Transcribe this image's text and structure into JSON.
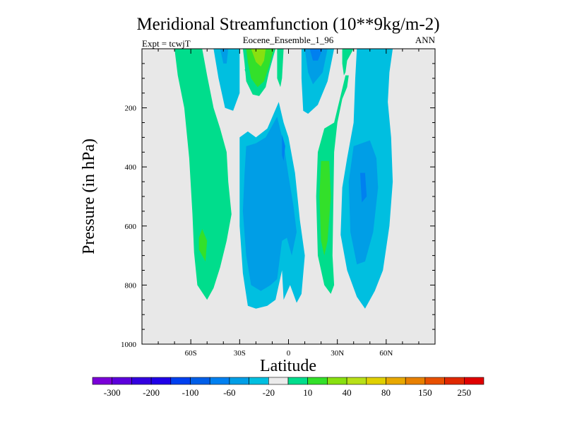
{
  "chart_data": {
    "type": "contour",
    "title": "Meridional Streamfunction (10**9kg/m-2)",
    "subtitle": "Eocene_Ensemble_1_96",
    "left_label": "Expt = tcwjT",
    "right_label": "ANN",
    "xlabel": "Latitude",
    "ylabel": "Pressure (in hPa)",
    "xlim": [
      -90,
      90
    ],
    "ylim": [
      0,
      1000
    ],
    "y_inverted": true,
    "x_ticks": [
      {
        "value": -60,
        "label": "60S"
      },
      {
        "value": -30,
        "label": "30S"
      },
      {
        "value": 0,
        "label": "0"
      },
      {
        "value": 30,
        "label": "30N"
      },
      {
        "value": 60,
        "label": "60N"
      }
    ],
    "y_ticks": [
      {
        "value": 200,
        "label": "200"
      },
      {
        "value": 400,
        "label": "400"
      },
      {
        "value": 600,
        "label": "600"
      },
      {
        "value": 800,
        "label": "800"
      },
      {
        "value": 1000,
        "label": "1000"
      }
    ],
    "background_color": "#e8e8e8",
    "regions": [
      {
        "level": 10,
        "color": "#00dd8c",
        "points": [
          [
            -70,
            0
          ],
          [
            -53,
            0
          ],
          [
            -50,
            90
          ],
          [
            -46,
            200
          ],
          [
            -42,
            270
          ],
          [
            -38,
            350
          ],
          [
            -37,
            450
          ],
          [
            -35,
            560
          ],
          [
            -38,
            650
          ],
          [
            -42,
            740
          ],
          [
            -46,
            810
          ],
          [
            -50,
            850
          ],
          [
            -56,
            800
          ],
          [
            -58,
            690
          ],
          [
            -59,
            560
          ],
          [
            -61,
            370
          ],
          [
            -64,
            200
          ],
          [
            -68,
            90
          ]
        ]
      },
      {
        "level": 40,
        "color": "#33e02a",
        "points": [
          [
            -53,
            610
          ],
          [
            -50,
            650
          ],
          [
            -51,
            720
          ],
          [
            -55,
            680
          ],
          [
            -55,
            640
          ]
        ]
      },
      {
        "level": -20,
        "color": "#00bfe0",
        "points": [
          [
            -46,
            0
          ],
          [
            -30,
            0
          ],
          [
            -30,
            150
          ],
          [
            -34,
            210
          ],
          [
            -39,
            200
          ],
          [
            -43,
            100
          ]
        ]
      },
      {
        "level": -40,
        "color": "#009ee6",
        "points": [
          [
            -42,
            0
          ],
          [
            -37,
            0
          ],
          [
            -38,
            50
          ],
          [
            -40,
            50
          ]
        ]
      },
      {
        "level": 10,
        "color": "#00dd8c",
        "points": [
          [
            -28,
            0
          ],
          [
            -8,
            0
          ],
          [
            -12,
            80
          ],
          [
            -14,
            130
          ],
          [
            -18,
            160
          ],
          [
            -22,
            155
          ],
          [
            -26,
            110
          ],
          [
            -27,
            50
          ]
        ]
      },
      {
        "level": 40,
        "color": "#33e02a",
        "points": [
          [
            -26,
            0
          ],
          [
            -9,
            0
          ],
          [
            -12,
            60
          ],
          [
            -15,
            110
          ],
          [
            -19,
            130
          ],
          [
            -23,
            100
          ],
          [
            -25,
            45
          ]
        ]
      },
      {
        "level": 80,
        "color": "#88e010",
        "points": [
          [
            -23,
            0
          ],
          [
            -14,
            0
          ],
          [
            -15,
            40
          ],
          [
            -17,
            60
          ],
          [
            -20,
            45
          ]
        ]
      },
      {
        "level": 10,
        "color": "#00dd8c",
        "points": [
          [
            -7,
            0
          ],
          [
            -3,
            0
          ],
          [
            -4,
            100
          ],
          [
            -5,
            130
          ],
          [
            -7,
            100
          ]
        ]
      },
      {
        "level": 10,
        "color": "#00dd8c",
        "points": [
          [
            -27,
            70
          ],
          [
            -24,
            70
          ],
          [
            -25,
            100
          ]
        ]
      },
      {
        "level": -20,
        "color": "#00bfe0",
        "points": [
          [
            8,
            0
          ],
          [
            28,
            0
          ],
          [
            24,
            110
          ],
          [
            18,
            190
          ],
          [
            12,
            220
          ],
          [
            9,
            210
          ],
          [
            8,
            100
          ]
        ]
      },
      {
        "level": -40,
        "color": "#009ee6",
        "points": [
          [
            10,
            0
          ],
          [
            24,
            0
          ],
          [
            21,
            80
          ],
          [
            15,
            120
          ],
          [
            12,
            80
          ]
        ]
      },
      {
        "level": -60,
        "color": "#0080f0",
        "points": [
          [
            13,
            0
          ],
          [
            21,
            0
          ],
          [
            18,
            40
          ],
          [
            15,
            40
          ]
        ]
      },
      {
        "level": 10,
        "color": "#00dd8c",
        "points": [
          [
            33,
            0
          ],
          [
            40,
            0
          ],
          [
            36,
            40
          ],
          [
            35,
            80
          ],
          [
            34,
            90
          ],
          [
            33,
            50
          ]
        ]
      },
      {
        "level": 10,
        "color": "#00dd8c",
        "points": [
          [
            35,
            90
          ],
          [
            37,
            90
          ],
          [
            36,
            130
          ],
          [
            33,
            170
          ],
          [
            30,
            250
          ],
          [
            28,
            350
          ],
          [
            27,
            700
          ],
          [
            28,
            800
          ],
          [
            26,
            830
          ],
          [
            22,
            800
          ],
          [
            18,
            700
          ],
          [
            17,
            500
          ],
          [
            18,
            350
          ],
          [
            22,
            270
          ],
          [
            28,
            250
          ]
        ]
      },
      {
        "level": 40,
        "color": "#33e02a",
        "points": [
          [
            20,
            380
          ],
          [
            25,
            380
          ],
          [
            26,
            500
          ],
          [
            24,
            650
          ],
          [
            22,
            700
          ],
          [
            20,
            650
          ],
          [
            19,
            500
          ]
        ]
      },
      {
        "level": -20,
        "color": "#00bfe0",
        "points": [
          [
            42,
            0
          ],
          [
            64,
            0
          ],
          [
            62,
            80
          ],
          [
            61,
            180
          ],
          [
            63,
            300
          ],
          [
            64,
            450
          ],
          [
            62,
            600
          ],
          [
            58,
            750
          ],
          [
            53,
            820
          ],
          [
            47,
            880
          ],
          [
            42,
            840
          ],
          [
            36,
            750
          ],
          [
            32,
            630
          ],
          [
            33,
            470
          ],
          [
            36,
            370
          ],
          [
            40,
            250
          ],
          [
            41,
            100
          ]
        ]
      },
      {
        "level": -40,
        "color": "#009ee6",
        "points": [
          [
            40,
            330
          ],
          [
            50,
            310
          ],
          [
            54,
            370
          ],
          [
            55,
            470
          ],
          [
            52,
            620
          ],
          [
            47,
            720
          ],
          [
            42,
            730
          ],
          [
            38,
            620
          ],
          [
            37,
            450
          ]
        ]
      },
      {
        "level": -60,
        "color": "#0080f0",
        "points": [
          [
            44,
            420
          ],
          [
            47,
            420
          ],
          [
            48,
            500
          ],
          [
            45,
            520
          ]
        ]
      },
      {
        "level": -20,
        "color": "#00bfe0",
        "points": [
          [
            -30,
            300
          ],
          [
            -25,
            280
          ],
          [
            -20,
            300
          ],
          [
            -13,
            270
          ],
          [
            -6,
            180
          ],
          [
            -3,
            250
          ],
          [
            0,
            300
          ],
          [
            4,
            420
          ],
          [
            7,
            580
          ],
          [
            10,
            700
          ],
          [
            8,
            830
          ],
          [
            5,
            860
          ],
          [
            1,
            800
          ],
          [
            -3,
            850
          ],
          [
            -4,
            750
          ],
          [
            -8,
            850
          ],
          [
            -13,
            870
          ],
          [
            -20,
            880
          ],
          [
            -25,
            870
          ],
          [
            -28,
            760
          ],
          [
            -30,
            600
          ],
          [
            -30,
            450
          ]
        ]
      },
      {
        "level": -40,
        "color": "#009ee6",
        "points": [
          [
            -26,
            330
          ],
          [
            -20,
            320
          ],
          [
            -14,
            300
          ],
          [
            -7,
            230
          ],
          [
            -3,
            320
          ],
          [
            0,
            430
          ],
          [
            3,
            530
          ],
          [
            5,
            620
          ],
          [
            2,
            700
          ],
          [
            -1,
            640
          ],
          [
            -4,
            650
          ],
          [
            -7,
            780
          ],
          [
            -11,
            800
          ],
          [
            -17,
            820
          ],
          [
            -23,
            800
          ],
          [
            -26,
            700
          ],
          [
            -28,
            550
          ],
          [
            -27,
            420
          ]
        ]
      },
      {
        "level": -60,
        "color": "#0080f0",
        "points": [
          [
            -4,
            290
          ],
          [
            -2,
            330
          ],
          [
            -3,
            380
          ],
          [
            -4,
            360
          ]
        ]
      }
    ],
    "colorbar": {
      "levels": [
        -300,
        -250,
        -200,
        -150,
        -100,
        -80,
        -60,
        -40,
        -20,
        -10,
        10,
        20,
        40,
        60,
        80,
        100,
        150,
        200,
        250,
        300
      ],
      "colors": [
        "#7a00d8",
        "#5c00dc",
        "#3300e0",
        "#2000e8",
        "#0040f0",
        "#005ee8",
        "#0080f0",
        "#009ee6",
        "#00bfe0",
        "#ebebeb",
        "#00dd8c",
        "#33e02a",
        "#88e010",
        "#b8e018",
        "#e0d000",
        "#e8a800",
        "#e88000",
        "#e85000",
        "#e02800",
        "#e00000"
      ],
      "labels": [
        {
          "level": -300,
          "label": "-300"
        },
        {
          "level": -200,
          "label": "-200"
        },
        {
          "level": -100,
          "label": "-100"
        },
        {
          "level": -60,
          "label": "-60"
        },
        {
          "level": -20,
          "label": "-20"
        },
        {
          "level": 10,
          "label": "10"
        },
        {
          "level": 40,
          "label": "40"
        },
        {
          "level": 80,
          "label": "80"
        },
        {
          "level": 150,
          "label": "150"
        },
        {
          "level": 250,
          "label": "250"
        }
      ]
    }
  }
}
